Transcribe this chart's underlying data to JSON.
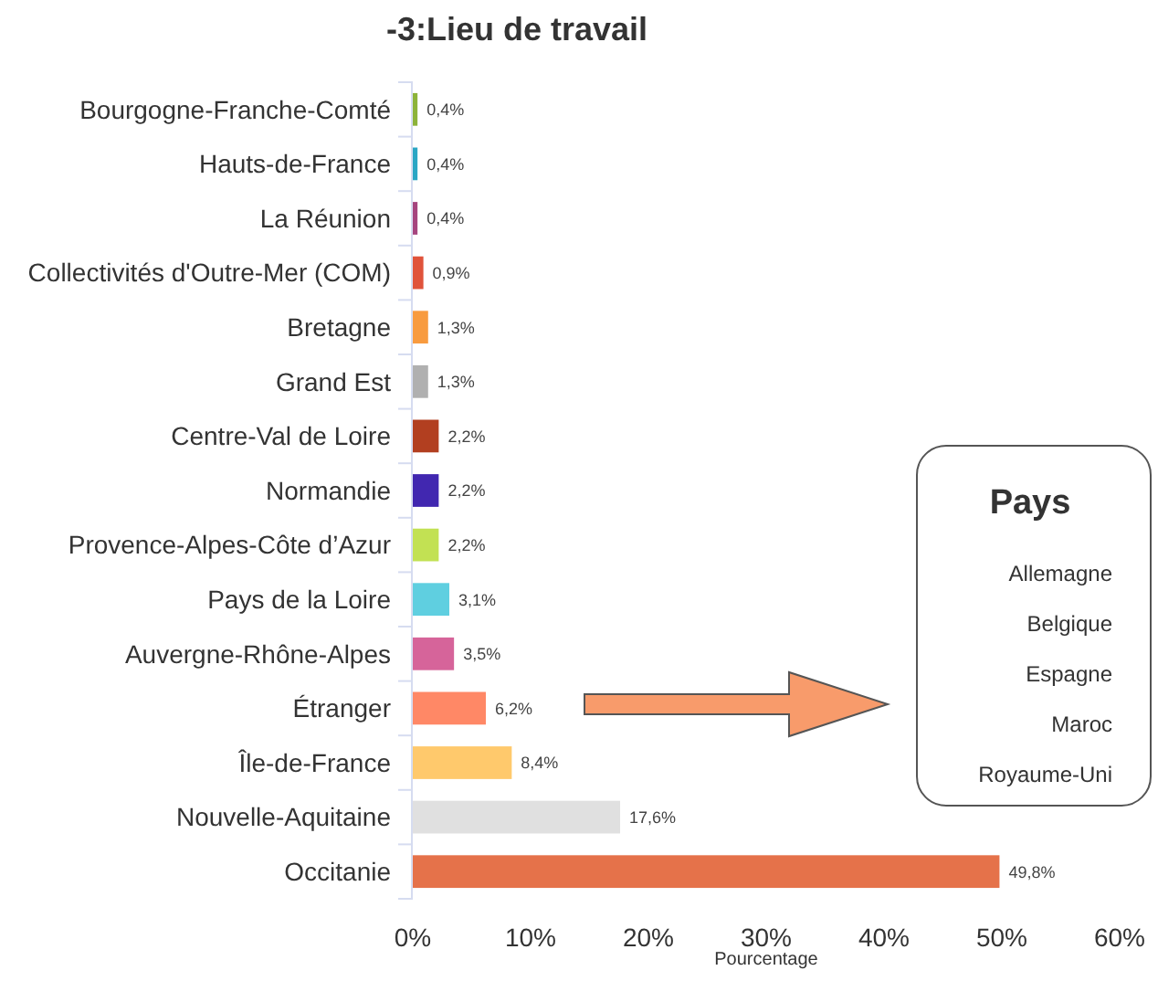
{
  "chart_data": {
    "type": "bar",
    "orientation": "horizontal",
    "title": "-3:Lieu de travail",
    "xlabel": "Pourcentage",
    "categories": [
      "Bourgogne-Franche-Comté",
      "Hauts-de-France",
      "La Réunion",
      "Collectivités d'Outre-Mer (COM)",
      "Bretagne",
      "Grand Est",
      "Centre-Val de Loire",
      "Normandie",
      "Provence-Alpes-Côte d’Azur",
      "Pays de la Loire",
      "Auvergne-Rhône-Alpes",
      "Étranger",
      "Île-de-France",
      "Nouvelle-Aquitaine",
      "Occitanie"
    ],
    "values": [
      0.4,
      0.4,
      0.4,
      0.9,
      1.3,
      1.3,
      2.2,
      2.2,
      2.2,
      3.1,
      3.5,
      6.2,
      8.4,
      17.6,
      49.8
    ],
    "value_labels": [
      "0,4%",
      "0,4%",
      "0,4%",
      "0,9%",
      "1,3%",
      "1,3%",
      "2,2%",
      "2,2%",
      "2,2%",
      "3,1%",
      "3,5%",
      "6,2%",
      "8,4%",
      "17,6%",
      "49,8%"
    ],
    "colors": [
      "#8db33a",
      "#2aa6c4",
      "#a6457e",
      "#e0533b",
      "#f89b3f",
      "#b0b0b0",
      "#b23f20",
      "#4127b0",
      "#c2e153",
      "#5fcfe0",
      "#d6649a",
      "#ff8866",
      "#ffc96c",
      "#e0e0e0",
      "#e5724a"
    ],
    "xlim": [
      0,
      60
    ],
    "xticks": [
      {
        "value": 0,
        "label": "0%"
      },
      {
        "value": 10,
        "label": "10%"
      },
      {
        "value": 20,
        "label": "20%"
      },
      {
        "value": 30,
        "label": "30%"
      },
      {
        "value": 40,
        "label": "40%"
      },
      {
        "value": 50,
        "label": "50%"
      },
      {
        "value": 60,
        "label": "60%"
      }
    ],
    "grid": false,
    "annotations": [
      "Pays",
      "Allemagne",
      "Belgique",
      "Espagne",
      "Maroc",
      "Royaume-Uni"
    ]
  }
}
